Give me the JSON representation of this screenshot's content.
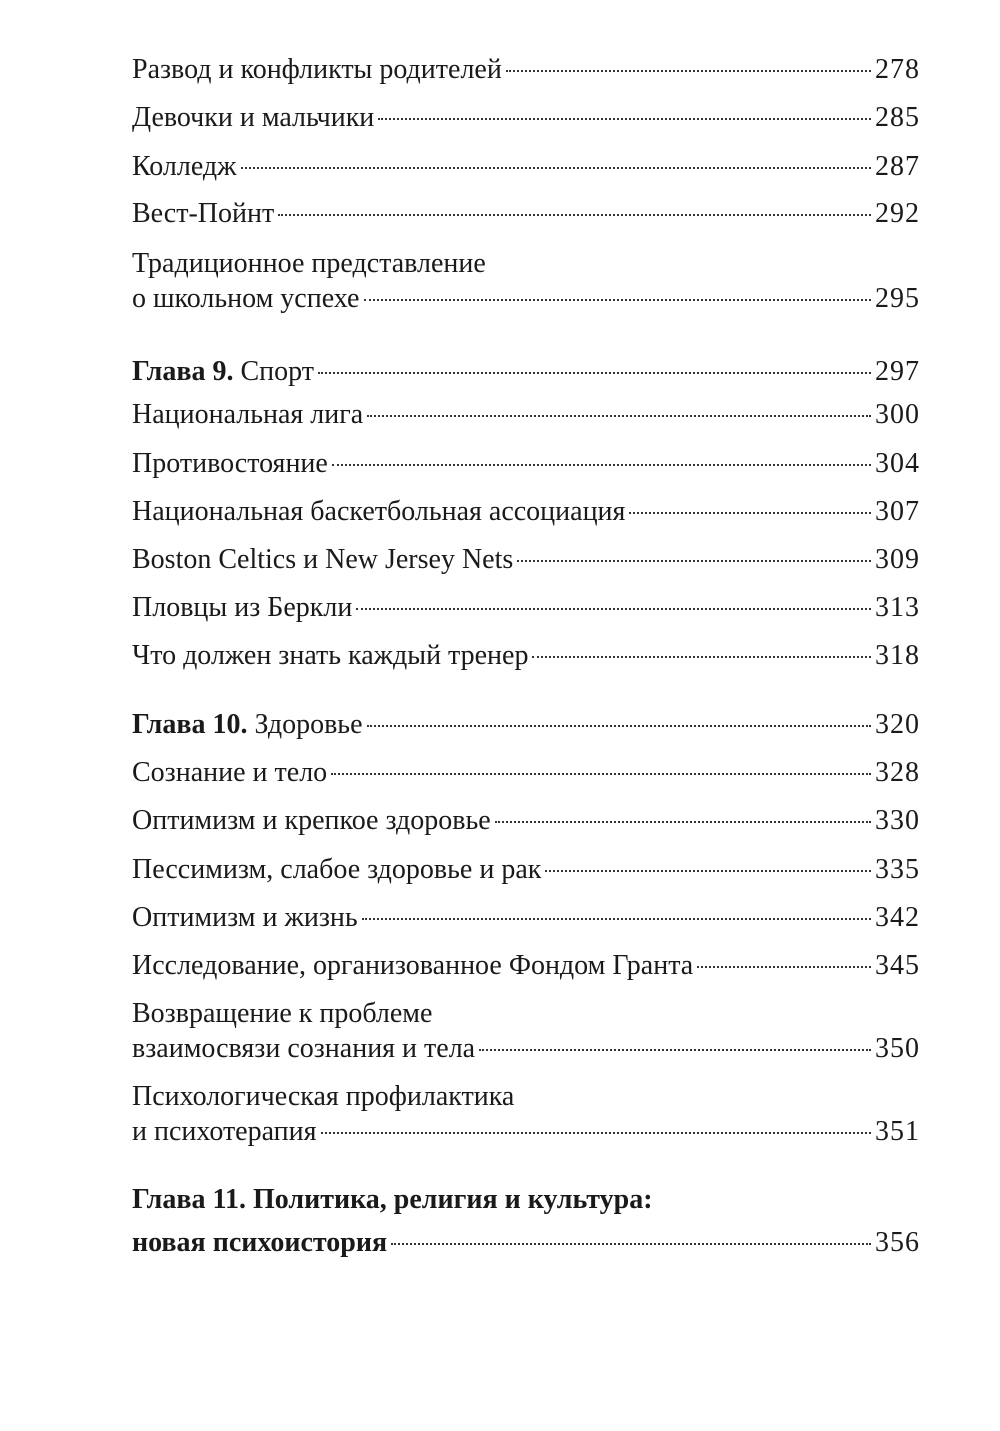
{
  "toc": [
    {
      "lines": [
        "Развод и конфликты родителей"
      ],
      "page": "278"
    },
    {
      "lines": [
        "Девочки и мальчики"
      ],
      "page": "285"
    },
    {
      "lines": [
        "Колледж"
      ],
      "page": "287"
    },
    {
      "lines": [
        "Вест-Пойнт"
      ],
      "page": "292"
    },
    {
      "lines": [
        "Традиционное представление",
        "о школьном успехе"
      ],
      "page": "295"
    },
    {
      "chapter": true,
      "label": "Глава 9.",
      "lines": [
        "Спорт"
      ],
      "page": "297"
    },
    {
      "lines": [
        "Национальная лига"
      ],
      "page": "300"
    },
    {
      "lines": [
        "Противостояние"
      ],
      "page": "304"
    },
    {
      "lines": [
        "Национальная баскетбольная ассоциация"
      ],
      "page": "307"
    },
    {
      "lines": [
        "Boston Celtics и New Jersey Nets"
      ],
      "page": "309"
    },
    {
      "lines": [
        "Пловцы из Беркли"
      ],
      "page": "313"
    },
    {
      "lines": [
        "Что должен знать каждый тренер"
      ],
      "page": "318"
    },
    {
      "chapter": true,
      "label": "Глава 10.",
      "lines": [
        "Здоровье"
      ],
      "page": "320"
    },
    {
      "lines": [
        "Сознание и тело"
      ],
      "page": "328"
    },
    {
      "lines": [
        "Оптимизм и крепкое здоровье"
      ],
      "page": "330"
    },
    {
      "lines": [
        "Пессимизм, слабое здоровье и рак"
      ],
      "page": "335"
    },
    {
      "lines": [
        "Оптимизм и жизнь"
      ],
      "page": "342"
    },
    {
      "lines": [
        "Исследование, организованное Фондом Гранта"
      ],
      "page": "345"
    },
    {
      "lines": [
        "Возвращение к проблеме",
        "взаимосвязи сознания и тела"
      ],
      "page": "350"
    },
    {
      "lines": [
        "Психологическая профилактика",
        "и психотерапия"
      ],
      "page": "351"
    },
    {
      "chapter": true,
      "allbold": true,
      "label": "Глава 11.",
      "lines": [
        "Политика, религия и культура:",
        "новая психоистория"
      ],
      "page": "356"
    }
  ]
}
